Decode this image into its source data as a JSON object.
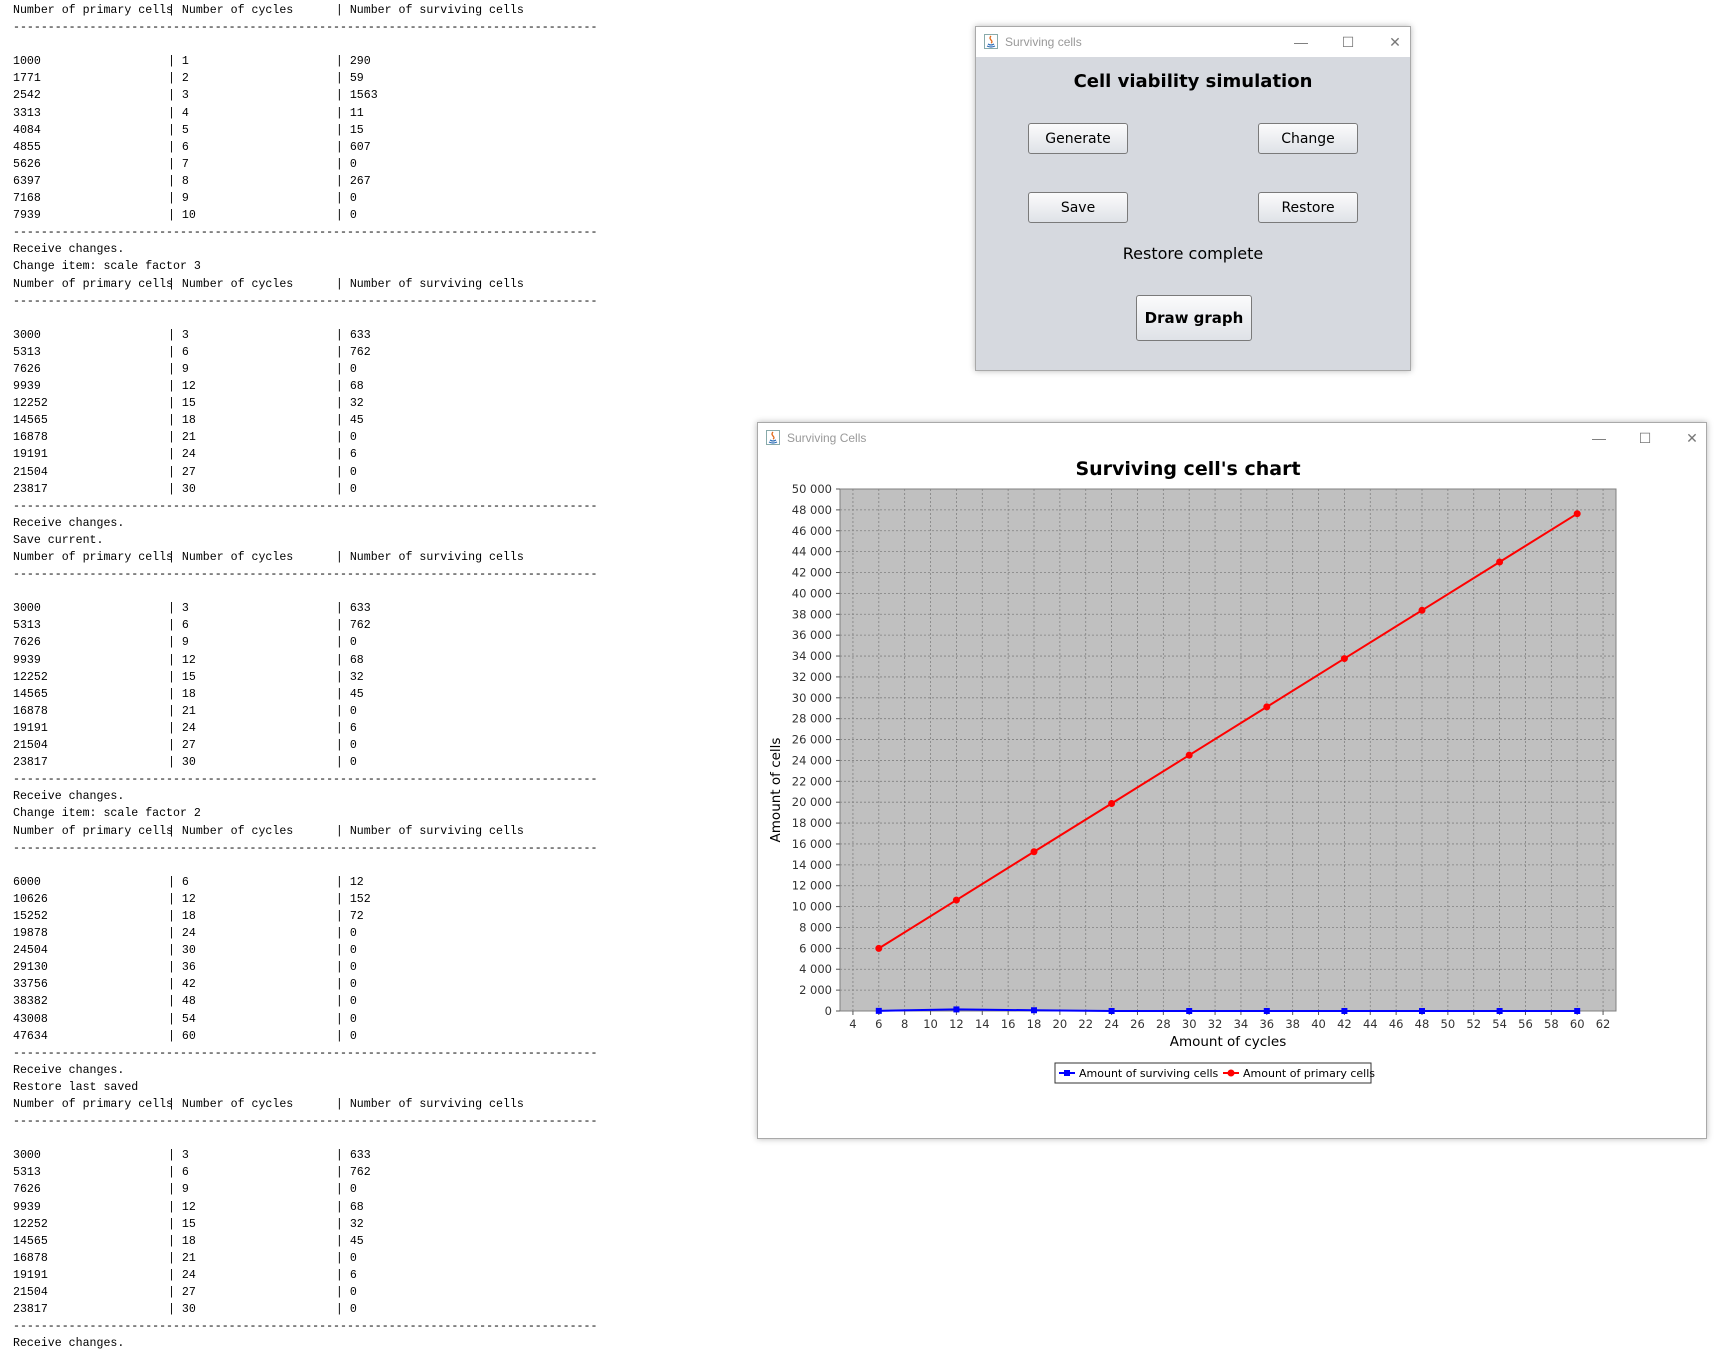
{
  "console": {
    "header": [
      "Number of primary cells",
      "Number of cycles",
      "Number of surviving cells"
    ],
    "separator": "------------------------------------------------------------------------------------",
    "blocks": [
      {
        "messages": [],
        "rows": [
          [
            "1000",
            "1",
            "290"
          ],
          [
            "1771",
            "2",
            "59"
          ],
          [
            "2542",
            "3",
            "1563"
          ],
          [
            "3313",
            "4",
            "11"
          ],
          [
            "4084",
            "5",
            "15"
          ],
          [
            "4855",
            "6",
            "607"
          ],
          [
            "5626",
            "7",
            "0"
          ],
          [
            "6397",
            "8",
            "267"
          ],
          [
            "7168",
            "9",
            "0"
          ],
          [
            "7939",
            "10",
            "0"
          ]
        ]
      },
      {
        "messages": [
          "Receive changes.",
          "Change item: scale factor 3"
        ],
        "rows": [
          [
            "3000",
            "3",
            "633"
          ],
          [
            "5313",
            "6",
            "762"
          ],
          [
            "7626",
            "9",
            "0"
          ],
          [
            "9939",
            "12",
            "68"
          ],
          [
            "12252",
            "15",
            "32"
          ],
          [
            "14565",
            "18",
            "45"
          ],
          [
            "16878",
            "21",
            "0"
          ],
          [
            "19191",
            "24",
            "6"
          ],
          [
            "21504",
            "27",
            "0"
          ],
          [
            "23817",
            "30",
            "0"
          ]
        ]
      },
      {
        "messages": [
          "Receive changes.",
          "Save current."
        ],
        "rows": [
          [
            "3000",
            "3",
            "633"
          ],
          [
            "5313",
            "6",
            "762"
          ],
          [
            "7626",
            "9",
            "0"
          ],
          [
            "9939",
            "12",
            "68"
          ],
          [
            "12252",
            "15",
            "32"
          ],
          [
            "14565",
            "18",
            "45"
          ],
          [
            "16878",
            "21",
            "0"
          ],
          [
            "19191",
            "24",
            "6"
          ],
          [
            "21504",
            "27",
            "0"
          ],
          [
            "23817",
            "30",
            "0"
          ]
        ]
      },
      {
        "messages": [
          "Receive changes.",
          "Change item: scale factor 2"
        ],
        "rows": [
          [
            "6000",
            "6",
            "12"
          ],
          [
            "10626",
            "12",
            "152"
          ],
          [
            "15252",
            "18",
            "72"
          ],
          [
            "19878",
            "24",
            "0"
          ],
          [
            "24504",
            "30",
            "0"
          ],
          [
            "29130",
            "36",
            "0"
          ],
          [
            "33756",
            "42",
            "0"
          ],
          [
            "38382",
            "48",
            "0"
          ],
          [
            "43008",
            "54",
            "0"
          ],
          [
            "47634",
            "60",
            "0"
          ]
        ]
      },
      {
        "messages": [
          "Receive changes.",
          "Restore last saved"
        ],
        "rows": [
          [
            "3000",
            "3",
            "633"
          ],
          [
            "5313",
            "6",
            "762"
          ],
          [
            "7626",
            "9",
            "0"
          ],
          [
            "9939",
            "12",
            "68"
          ],
          [
            "12252",
            "15",
            "32"
          ],
          [
            "14565",
            "18",
            "45"
          ],
          [
            "16878",
            "21",
            "0"
          ],
          [
            "19191",
            "24",
            "6"
          ],
          [
            "21504",
            "27",
            "0"
          ],
          [
            "23817",
            "30",
            "0"
          ]
        ]
      }
    ],
    "trailing": [
      "Receive changes."
    ]
  },
  "sim_window": {
    "title": "Surviving cells",
    "heading": "Cell viability simulation",
    "buttons": {
      "generate": "Generate",
      "change": "Change",
      "save": "Save",
      "restore": "Restore",
      "draw_graph": "Draw graph"
    },
    "status": "Restore complete",
    "controls": {
      "minimize": "—",
      "maximize": "☐",
      "close": "✕"
    }
  },
  "chart_window": {
    "title": "Surviving Cells",
    "controls": {
      "minimize": "—",
      "maximize": "☐",
      "close": "✕"
    }
  },
  "chart_data": {
    "type": "line",
    "title": "Surviving cell's chart",
    "xlabel": "Amount of cycles",
    "ylabel": "Amount of cells",
    "xlim": [
      3,
      63
    ],
    "ylim": [
      0,
      50000
    ],
    "x_ticks": [
      4,
      6,
      8,
      10,
      12,
      14,
      16,
      18,
      20,
      22,
      24,
      26,
      28,
      30,
      32,
      34,
      36,
      38,
      40,
      42,
      44,
      46,
      48,
      50,
      52,
      54,
      56,
      58,
      60,
      62
    ],
    "y_ticks": [
      0,
      2000,
      4000,
      6000,
      8000,
      10000,
      12000,
      14000,
      16000,
      18000,
      20000,
      22000,
      24000,
      26000,
      28000,
      30000,
      32000,
      34000,
      36000,
      38000,
      40000,
      42000,
      44000,
      46000,
      48000,
      50000
    ],
    "grid": true,
    "legend_position": "bottom",
    "x": [
      6,
      12,
      18,
      24,
      30,
      36,
      42,
      48,
      54,
      60
    ],
    "series": [
      {
        "name": "Amount of surviving cells",
        "color": "#0000ff",
        "marker": "square",
        "values": [
          12,
          152,
          72,
          0,
          0,
          0,
          0,
          0,
          0,
          0
        ]
      },
      {
        "name": "Amount of primary cells",
        "color": "#ff0000",
        "marker": "circle",
        "values": [
          6000,
          10626,
          15252,
          19878,
          24504,
          29130,
          33756,
          38382,
          43008,
          47634
        ]
      }
    ],
    "colors": {
      "plot_background": "#c0c0c0",
      "grid": "#808080"
    }
  }
}
